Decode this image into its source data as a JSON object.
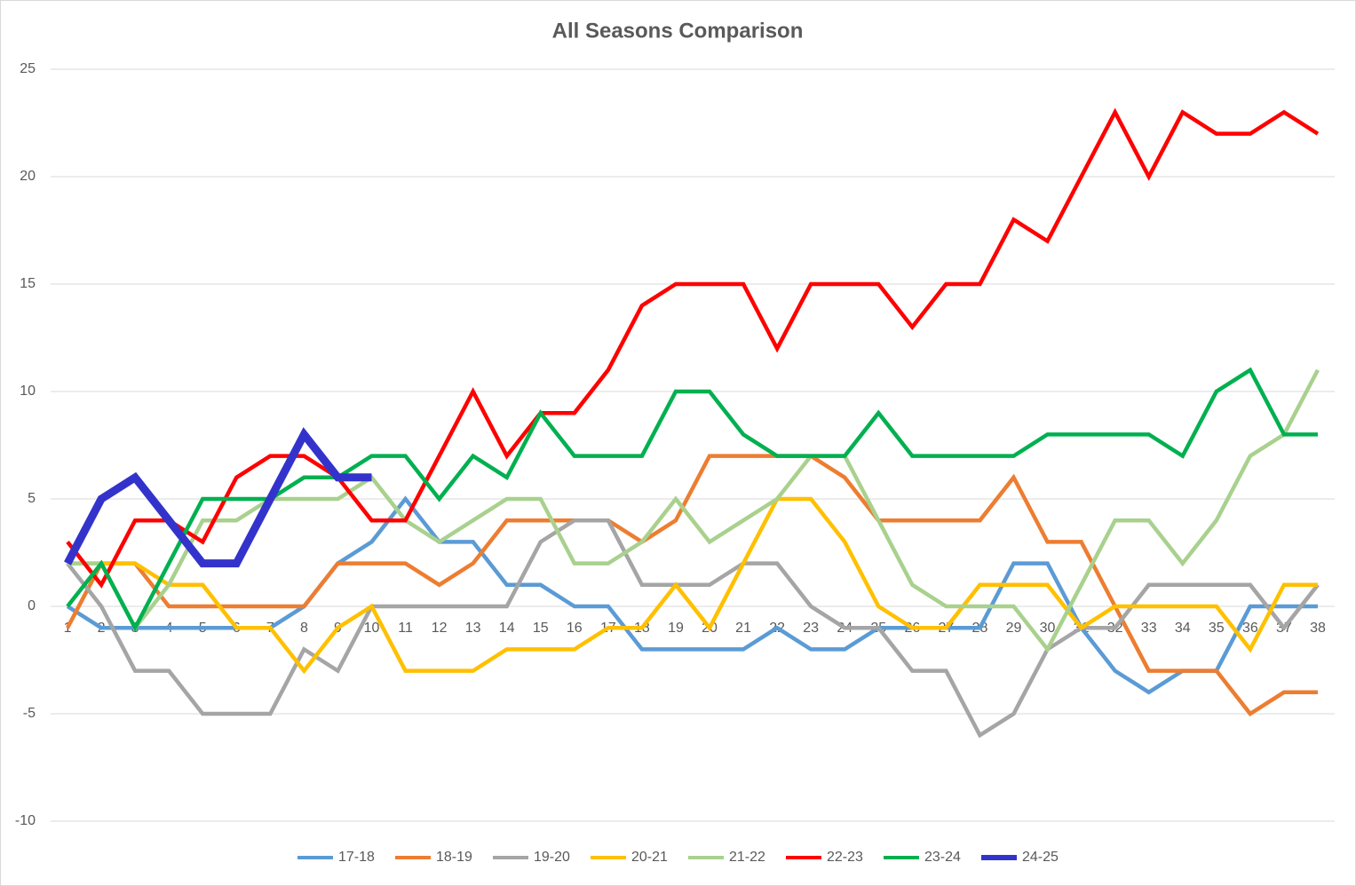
{
  "chart_data": {
    "type": "line",
    "title": "All Seasons Comparison",
    "categories": [
      1,
      2,
      3,
      4,
      5,
      6,
      7,
      8,
      9,
      10,
      11,
      12,
      13,
      14,
      15,
      16,
      17,
      18,
      19,
      20,
      21,
      22,
      23,
      24,
      25,
      26,
      27,
      28,
      29,
      30,
      31,
      32,
      33,
      34,
      35,
      36,
      37,
      38
    ],
    "series": [
      {
        "name": "17-18",
        "color": "#5b9bd5",
        "values": [
          0,
          -1,
          -1,
          -1,
          -1,
          -1,
          -1,
          0,
          2,
          3,
          5,
          3,
          3,
          1,
          1,
          0,
          0,
          -2,
          -2,
          -2,
          -2,
          -1,
          -2,
          -2,
          -1,
          -1,
          -1,
          -1,
          2,
          2,
          -1,
          -3,
          -4,
          -3,
          -3,
          0,
          0,
          0
        ]
      },
      {
        "name": "18-19",
        "color": "#ed7d31",
        "values": [
          -1,
          2,
          2,
          0,
          0,
          0,
          0,
          0,
          2,
          2,
          2,
          1,
          2,
          4,
          4,
          4,
          4,
          3,
          4,
          7,
          7,
          7,
          7,
          6,
          4,
          4,
          4,
          4,
          6,
          3,
          3,
          0,
          -3,
          -3,
          -3,
          -5,
          -4,
          -4
        ]
      },
      {
        "name": "19-20",
        "color": "#a5a5a5",
        "values": [
          2,
          0,
          -3,
          -3,
          -5,
          -5,
          -5,
          -2,
          -3,
          0,
          0,
          0,
          0,
          0,
          3,
          4,
          4,
          1,
          1,
          1,
          2,
          2,
          0,
          -1,
          -1,
          -3,
          -3,
          -6,
          -5,
          -2,
          -1,
          -1,
          1,
          1,
          1,
          1,
          -1,
          1
        ]
      },
      {
        "name": "20-21",
        "color": "#ffc000",
        "values": [
          2,
          2,
          2,
          1,
          1,
          -1,
          -1,
          -3,
          -1,
          0,
          -3,
          -3,
          -3,
          -2,
          -2,
          -2,
          -1,
          -1,
          1,
          -1,
          2,
          5,
          5,
          3,
          0,
          -1,
          -1,
          1,
          1,
          1,
          -1,
          0,
          0,
          0,
          0,
          -2,
          1,
          1
        ]
      },
      {
        "name": "21-22",
        "color": "#a9d18e",
        "values": [
          2,
          2,
          -1,
          1,
          4,
          4,
          5,
          5,
          5,
          6,
          4,
          3,
          4,
          5,
          5,
          2,
          2,
          3,
          5,
          3,
          4,
          5,
          7,
          7,
          4,
          1,
          0,
          0,
          0,
          -2,
          1,
          4,
          4,
          2,
          4,
          7,
          8,
          11
        ]
      },
      {
        "name": "22-23",
        "color": "#ff0000",
        "values": [
          3,
          1,
          4,
          4,
          3,
          6,
          7,
          7,
          6,
          4,
          4,
          7,
          10,
          7,
          9,
          9,
          11,
          14,
          15,
          15,
          15,
          12,
          15,
          15,
          15,
          13,
          15,
          15,
          18,
          17,
          20,
          23,
          20,
          23,
          22,
          22,
          23,
          22
        ]
      },
      {
        "name": "23-24",
        "color": "#00b050",
        "values": [
          0,
          2,
          -1,
          2,
          5,
          5,
          5,
          6,
          6,
          7,
          7,
          5,
          7,
          6,
          9,
          7,
          7,
          7,
          10,
          10,
          8,
          7,
          7,
          7,
          9,
          7,
          7,
          7,
          7,
          8,
          8,
          8,
          8,
          7,
          10,
          11,
          8,
          8
        ]
      },
      {
        "name": "24-25",
        "color": "#3333cc",
        "values": [
          2,
          5,
          6,
          4,
          2,
          2,
          5,
          8,
          6,
          6,
          null,
          null,
          null,
          null,
          null,
          null,
          null,
          null,
          null,
          null,
          null,
          null,
          null,
          null,
          null,
          null,
          null,
          null,
          null,
          null,
          null,
          null,
          null,
          null,
          null,
          null,
          null,
          null
        ]
      }
    ],
    "ylim": [
      -10,
      25
    ],
    "yticks": [
      -10,
      -5,
      0,
      5,
      10,
      15,
      20,
      25
    ],
    "grid": true,
    "legend": "bottom"
  }
}
